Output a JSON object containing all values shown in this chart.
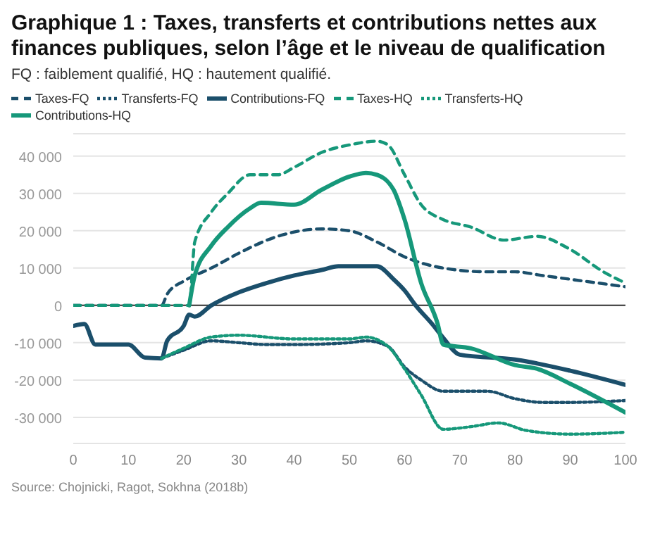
{
  "chart_data": {
    "type": "line",
    "title": "Graphique 1 : Taxes, transferts et contributions nettes aux finances publiques, selon l’âge et le niveau de qualification",
    "subtitle": "FQ : faiblement qualifié, HQ : hautement qualifié.",
    "annotations": [
      "Source: Chojnicki, Ragot, Sokhna (2018b)"
    ],
    "xlim": [
      0,
      100
    ],
    "xticks": [
      0,
      10,
      20,
      30,
      40,
      50,
      60,
      70,
      80,
      90,
      100
    ],
    "ylim": [
      -37000,
      46000
    ],
    "yticks": [
      {
        "value": -30000,
        "label": "-30 000"
      },
      {
        "value": -20000,
        "label": "-20 000"
      },
      {
        "value": -10000,
        "label": "-10 000"
      },
      0,
      {
        "value": 10000,
        "label": "10 000"
      },
      {
        "value": 20000,
        "label": "20 000"
      },
      {
        "value": 30000,
        "label": "30 000"
      },
      {
        "value": 40000,
        "label": "40 000"
      }
    ],
    "grid": "y",
    "legend": "top left",
    "marker": "none",
    "series": [
      {
        "name": "Taxes-FQ",
        "color": "#1b4f6b",
        "line_style": "dashed",
        "x": [
          0,
          16,
          17,
          20,
          22,
          25,
          30,
          37,
          45,
          50,
          55,
          60,
          67,
          75,
          80,
          85,
          90,
          100
        ],
        "values": [
          0,
          0,
          3000,
          6500,
          8000,
          10000,
          14000,
          18500,
          20500,
          20000,
          17000,
          13000,
          10000,
          9000,
          9000,
          8000,
          7000,
          5000
        ]
      },
      {
        "name": "Transferts-FQ",
        "color": "#1b4f6b",
        "line_style": "dotted",
        "x": [
          16,
          20,
          25,
          30,
          35,
          40,
          50,
          53,
          57,
          60,
          63,
          67,
          75,
          80,
          85,
          90,
          100
        ],
        "values": [
          -14200,
          -12000,
          -9500,
          -10000,
          -10500,
          -10500,
          -10000,
          -9500,
          -11000,
          -16500,
          -20000,
          -23000,
          -23000,
          -25000,
          -26000,
          -26000,
          -25500
        ]
      },
      {
        "name": "Contributions-FQ",
        "color": "#1b4f6b",
        "line_style": "solid",
        "x": [
          0,
          2,
          4,
          10,
          13,
          16,
          17,
          20,
          21,
          22,
          25,
          30,
          35,
          40,
          45,
          48,
          55,
          58,
          60,
          62,
          65,
          67,
          70,
          80,
          90,
          100
        ],
        "values": [
          -5500,
          -5000,
          -10500,
          -10500,
          -14000,
          -14200,
          -9500,
          -5500,
          -2500,
          -3000,
          0,
          3500,
          6000,
          8000,
          9500,
          10500,
          10500,
          7000,
          4000,
          0,
          -5000,
          -8700,
          -13200,
          -14500,
          -17500,
          -21300
        ]
      },
      {
        "name": "Taxes-HQ",
        "color": "#16987a",
        "line_style": "dashed",
        "x": [
          0,
          21,
          22,
          25,
          28,
          32,
          37,
          40,
          45,
          50,
          55,
          57,
          60,
          63,
          67,
          72,
          78,
          84,
          90,
          96,
          100
        ],
        "values": [
          0,
          0,
          17000,
          25000,
          30000,
          35000,
          35000,
          37000,
          41000,
          43000,
          44000,
          43000,
          35000,
          27000,
          23000,
          21000,
          17500,
          18500,
          15000,
          9000,
          6000
        ]
      },
      {
        "name": "Transferts-HQ",
        "color": "#16987a",
        "line_style": "dotted",
        "x": [
          16,
          20,
          25,
          30,
          40,
          50,
          53,
          57,
          60,
          63,
          67,
          72,
          77,
          82,
          90,
          100
        ],
        "values": [
          -14200,
          -11500,
          -8500,
          -8000,
          -9000,
          -9000,
          -8500,
          -11000,
          -17000,
          -24000,
          -33200,
          -32500,
          -31500,
          -33500,
          -34500,
          -34000
        ]
      },
      {
        "name": "Contributions-HQ",
        "color": "#16987a",
        "line_style": "solid",
        "x": [
          21,
          22,
          25,
          28,
          32,
          34,
          40,
          45,
          50,
          53,
          55,
          58,
          60,
          63,
          66,
          67,
          72,
          80,
          84,
          90,
          100
        ],
        "values": [
          0,
          8000,
          16000,
          21000,
          26000,
          27500,
          27000,
          31000,
          34500,
          35500,
          35000,
          31000,
          23000,
          6000,
          -5000,
          -10500,
          -11500,
          -16000,
          -17000,
          -21000,
          -28700
        ]
      }
    ]
  }
}
